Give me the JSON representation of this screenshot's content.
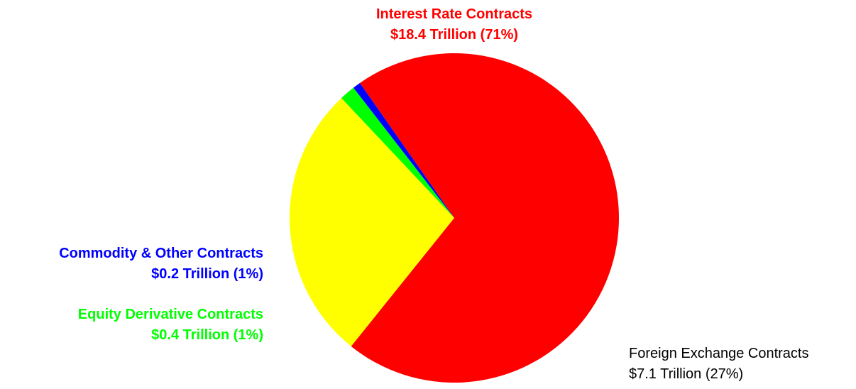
{
  "chart_data": {
    "type": "pie",
    "title": "",
    "start_angle_deg": 125,
    "slices": [
      {
        "name": "Interest Rate Contracts",
        "value": 18.4,
        "value_label": "$18.4 Trillion (71%)",
        "percent": 71,
        "color": "#ff0000"
      },
      {
        "name": "Foreign Exchange Contracts",
        "value": 7.1,
        "value_label": "$7.1 Trillion (27%)",
        "percent": 27,
        "color": "#ffff00"
      },
      {
        "name": "Equity Derivative Contracts",
        "value": 0.4,
        "value_label": "$0.4 Trillion (1%)",
        "percent": 1,
        "color": "#00ff00"
      },
      {
        "name": "Commodity & Other Contracts",
        "value": 0.2,
        "value_label": "$0.2 Trillion (1%)",
        "percent": 1,
        "color": "#0000ff"
      }
    ],
    "label_colors": {
      "Interest Rate Contracts": "#ff0000",
      "Foreign Exchange Contracts": "#000000",
      "Equity Derivative Contracts": "#00ff00",
      "Commodity & Other Contracts": "#0000ff"
    }
  }
}
